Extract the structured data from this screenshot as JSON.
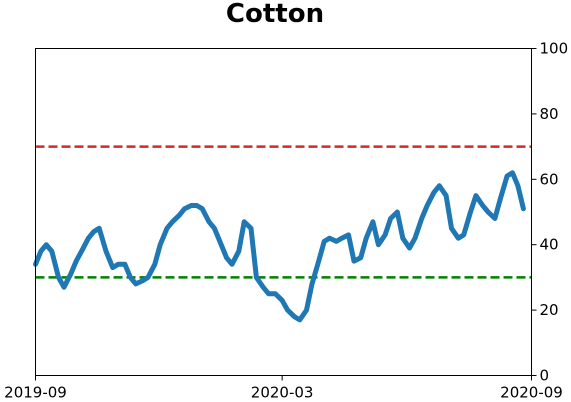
{
  "chart_data": {
    "type": "line",
    "title": "Cotton",
    "xlabel": "",
    "ylabel": "",
    "x_ticks": [
      "2019-09",
      "2020-03",
      "2020-09"
    ],
    "y_ticks": [
      "0",
      "20",
      "40",
      "60",
      "80",
      "100"
    ],
    "ylim": [
      0,
      100
    ],
    "y_axis_side": "right",
    "grid": false,
    "legend": "none",
    "reference_lines": [
      {
        "value": 70,
        "color": "#d62728",
        "style": "dashed"
      },
      {
        "value": 30,
        "color": "#008000",
        "style": "dashed"
      }
    ],
    "series": [
      {
        "color": "#1f77b4",
        "x": [
          "2019-09-01",
          "2019-09-05",
          "2019-09-09",
          "2019-09-13",
          "2019-09-18",
          "2019-09-22",
          "2019-09-27",
          "2019-10-01",
          "2019-10-05",
          "2019-10-10",
          "2019-10-14",
          "2019-10-18",
          "2019-10-23",
          "2019-10-28",
          "2019-11-01",
          "2019-11-06",
          "2019-11-10",
          "2019-11-14",
          "2019-11-19",
          "2019-11-23",
          "2019-11-28",
          "2019-12-02",
          "2019-12-07",
          "2019-12-11",
          "2019-12-16",
          "2019-12-20",
          "2019-12-25",
          "2019-12-29",
          "2020-01-02",
          "2020-01-07",
          "2020-01-11",
          "2020-01-16",
          "2020-01-20",
          "2020-01-24",
          "2020-01-29",
          "2020-02-02",
          "2020-02-07",
          "2020-02-11",
          "2020-02-16",
          "2020-02-20",
          "2020-02-25",
          "2020-03-01",
          "2020-03-05",
          "2020-03-10",
          "2020-03-14",
          "2020-03-19",
          "2020-03-23",
          "2020-03-28",
          "2020-04-01",
          "2020-04-05",
          "2020-04-10",
          "2020-04-14",
          "2020-04-19",
          "2020-04-23",
          "2020-04-28",
          "2020-05-02",
          "2020-05-07",
          "2020-05-11",
          "2020-05-16",
          "2020-05-20",
          "2020-05-25",
          "2020-05-29",
          "2020-06-03",
          "2020-06-07",
          "2020-06-12",
          "2020-06-16",
          "2020-06-21",
          "2020-06-25",
          "2020-06-30",
          "2020-07-04",
          "2020-07-09",
          "2020-07-13",
          "2020-07-18",
          "2020-07-22",
          "2020-07-27",
          "2020-07-31",
          "2020-08-05",
          "2020-08-09",
          "2020-08-14",
          "2020-08-18",
          "2020-08-22",
          "2020-08-26"
        ],
        "values": [
          34,
          38,
          40,
          38,
          30,
          27,
          31,
          35,
          38,
          42,
          44,
          45,
          38,
          33,
          34,
          34,
          30,
          28,
          29,
          30,
          34,
          40,
          45,
          47,
          49,
          51,
          52,
          52,
          51,
          47,
          45,
          40,
          36,
          34,
          38,
          47,
          45,
          30,
          27,
          25,
          25,
          23,
          20,
          18,
          17,
          20,
          28,
          35,
          41,
          42,
          41,
          42,
          43,
          35,
          36,
          42,
          47,
          40,
          43,
          48,
          50,
          42,
          39,
          42,
          48,
          52,
          56,
          58,
          55,
          45,
          42,
          43,
          50,
          55,
          52,
          50,
          48,
          54,
          61,
          62,
          58,
          51
        ]
      }
    ]
  }
}
